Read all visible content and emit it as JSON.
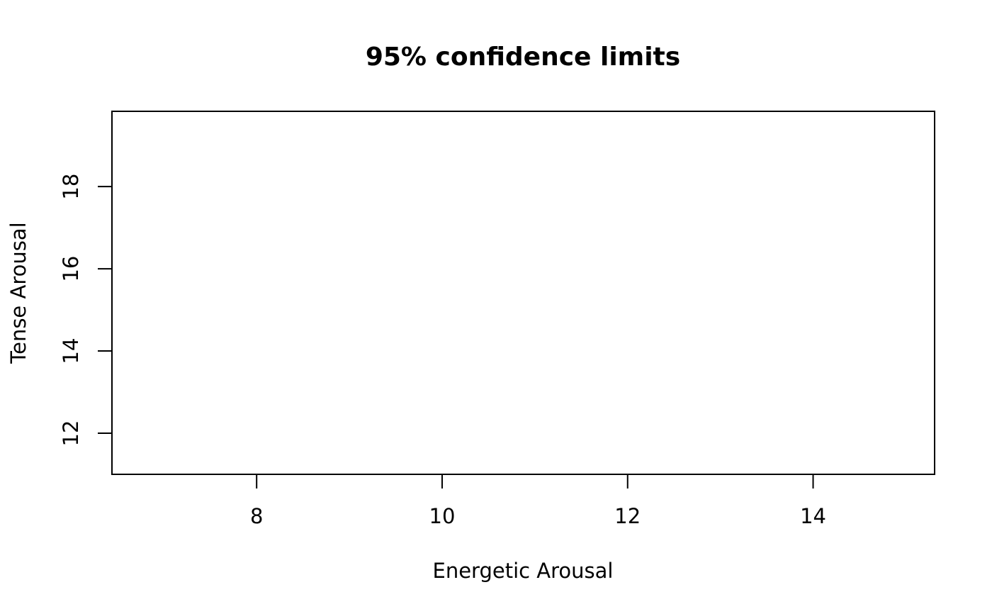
{
  "chart_data": {
    "type": "scatter",
    "title": "95% confidence limits",
    "x_label": "Energetic Arousal",
    "y_label": "Tense Arousal",
    "xlim": [
      6.44,
      15.31
    ],
    "xticks": [
      8,
      10,
      12,
      14
    ],
    "ylim": [
      11.0,
      19.83
    ],
    "yticks": [
      12,
      14,
      16,
      18
    ]
  }
}
